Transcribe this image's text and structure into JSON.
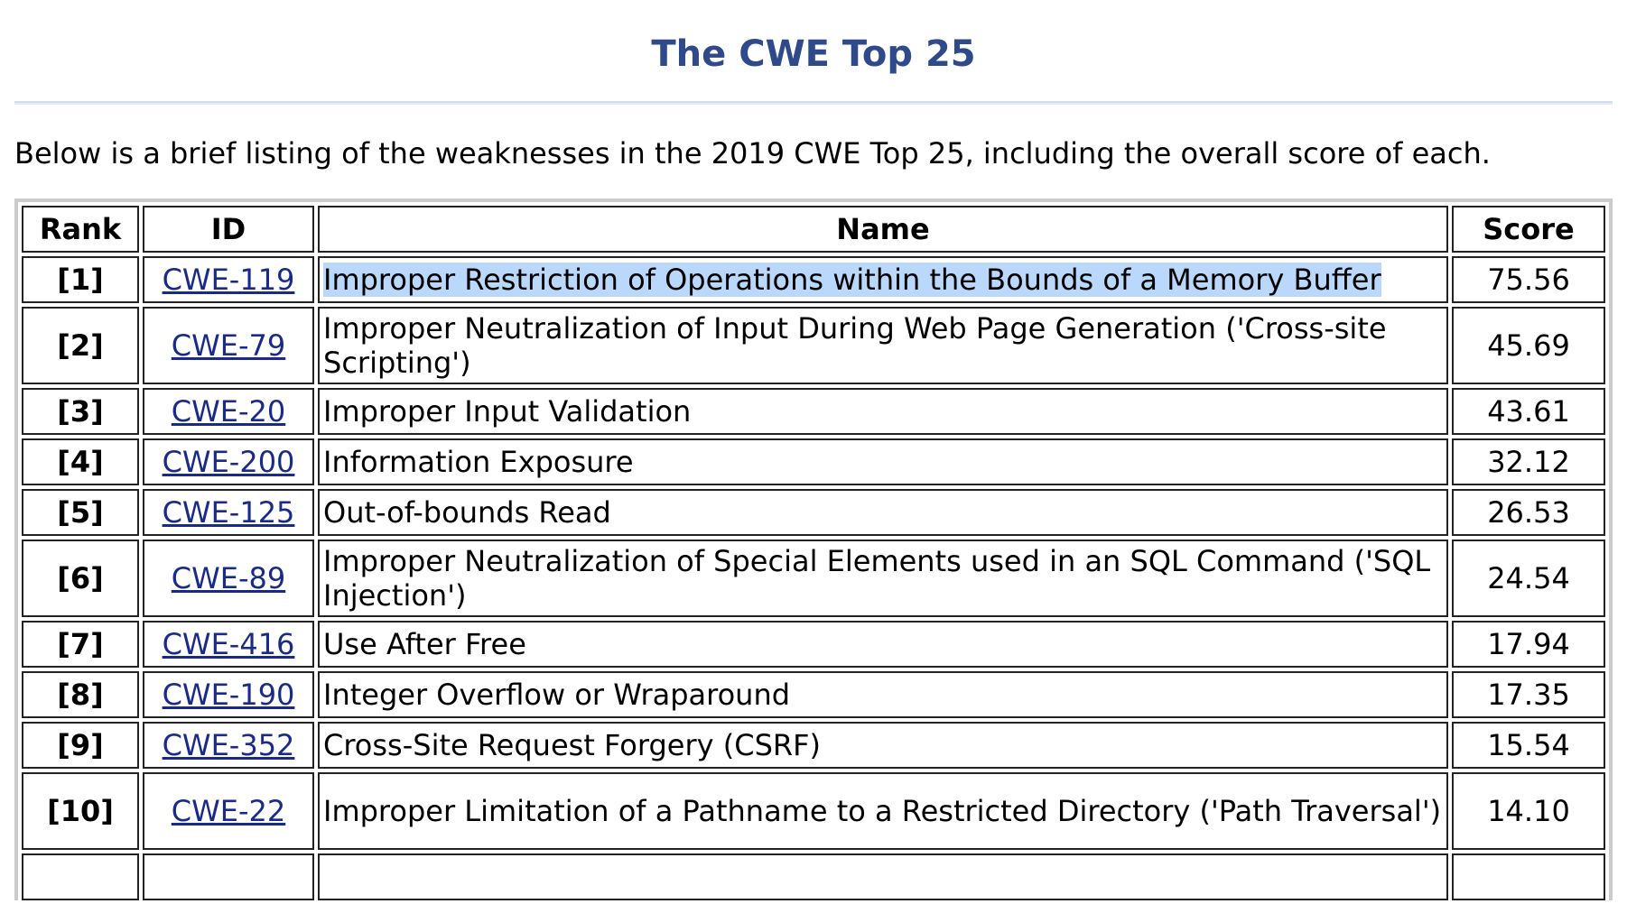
{
  "title": "The CWE Top 25",
  "intro": "Below is a brief listing of the weaknesses in the 2019 CWE Top 25, including the overall score of each.",
  "table": {
    "headers": {
      "rank": "Rank",
      "id": "ID",
      "name": "Name",
      "score": "Score"
    },
    "rows": [
      {
        "rank": "[1]",
        "id": "CWE-119",
        "name": "Improper Restriction of Operations within the Bounds of a Memory Buffer",
        "score": "75.56"
      },
      {
        "rank": "[2]",
        "id": "CWE-79",
        "name": "Improper Neutralization of Input During Web Page Generation ('Cross-site Scripting')",
        "score": "45.69"
      },
      {
        "rank": "[3]",
        "id": "CWE-20",
        "name": "Improper Input Validation",
        "score": "43.61"
      },
      {
        "rank": "[4]",
        "id": "CWE-200",
        "name": "Information Exposure",
        "score": "32.12"
      },
      {
        "rank": "[5]",
        "id": "CWE-125",
        "name": "Out-of-bounds Read",
        "score": "26.53"
      },
      {
        "rank": "[6]",
        "id": "CWE-89",
        "name": "Improper Neutralization of Special Elements used in an SQL Command ('SQL Injection')",
        "score": "24.54"
      },
      {
        "rank": "[7]",
        "id": "CWE-416",
        "name": "Use After Free",
        "score": "17.94"
      },
      {
        "rank": "[8]",
        "id": "CWE-190",
        "name": "Integer Overflow or Wraparound",
        "score": "17.35"
      },
      {
        "rank": "[9]",
        "id": "CWE-352",
        "name": "Cross-Site Request Forgery (CSRF)",
        "score": "15.54"
      },
      {
        "rank": "[10]",
        "id": "CWE-22",
        "name": "Improper Limitation of a Pathname to a Restricted Directory ('Path Traversal')",
        "score": "14.10"
      }
    ]
  },
  "colors": {
    "title": "#2f4a8a",
    "link": "#1a2a8a",
    "selection_highlight": "#b9d8fb"
  }
}
